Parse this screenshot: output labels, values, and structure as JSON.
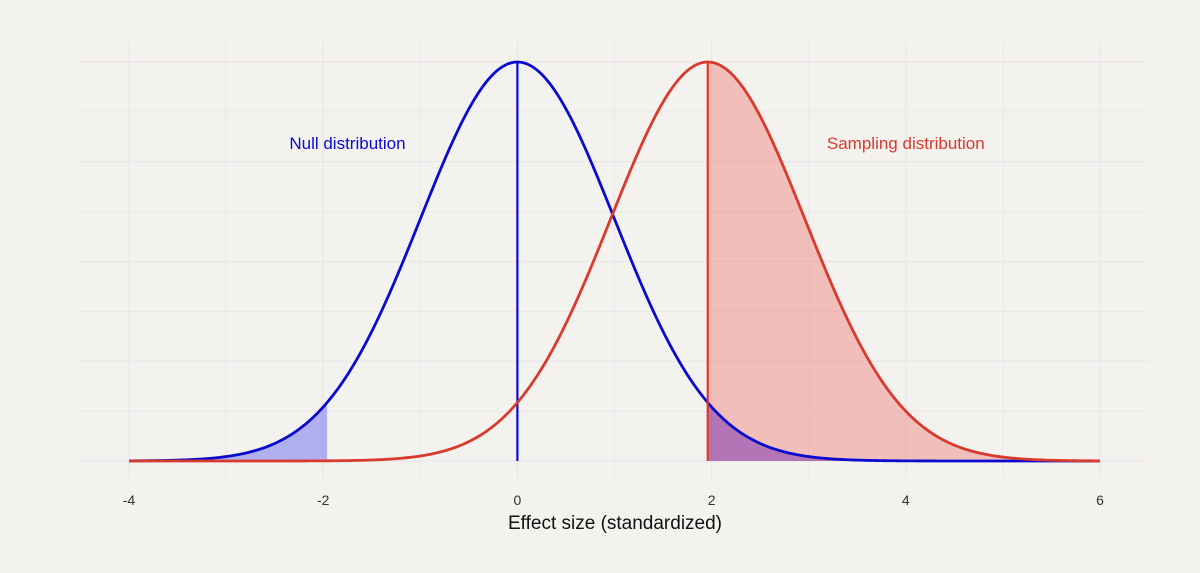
{
  "chart_data": {
    "type": "area",
    "title": "",
    "xlabel": "Effect size (standardized)",
    "ylabel": "",
    "xlim": [
      -4,
      6
    ],
    "x_ticks": [
      -4,
      -2,
      0,
      2,
      4,
      6
    ],
    "x_tick_labels": [
      "-4",
      "-2",
      "0",
      "2",
      "4",
      "6"
    ],
    "grid": true,
    "series": [
      {
        "name": "Null distribution",
        "distribution": "normal",
        "mean": 0,
        "sd": 1,
        "color": "#0a0ad0",
        "shade_from": -4,
        "shade_to": -1.96,
        "shade_color": "#7878f0",
        "shade_opacity": 0.55
      },
      {
        "name": "Sampling distribution",
        "distribution": "normal",
        "mean": 1.96,
        "sd": 1,
        "color": "#d93a2e",
        "shade_from": 1.96,
        "shade_to": 6,
        "shade_color": "#ee8a84",
        "shade_opacity": 0.5
      }
    ],
    "critical_value": 1.96,
    "overlap_shade": {
      "from": 1.96,
      "to": 6,
      "color": "#5a10b0",
      "opacity": 0.42
    },
    "annotations": [
      {
        "text": "Null distribution",
        "series": "Null distribution",
        "x": -1.75,
        "y_fraction": 0.8
      },
      {
        "text": "Sampling distribution",
        "series": "Sampling distribution",
        "x": 4.0,
        "y_fraction": 0.8
      }
    ]
  }
}
